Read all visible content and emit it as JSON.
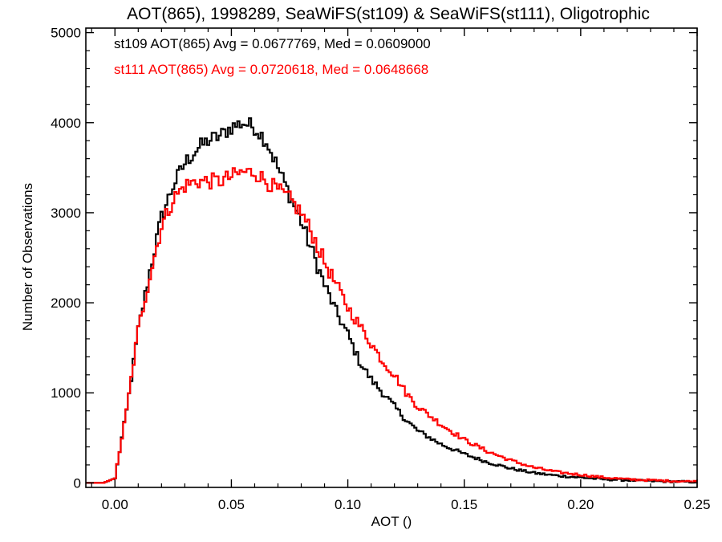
{
  "chart_data": {
    "type": "line",
    "title": "AOT(865), 1998289, SeaWiFS(st109) & SeaWiFS(st111), Oligotrophic",
    "xlabel": "AOT ()",
    "ylabel": "Number of Observations",
    "xlim": [
      -0.0125,
      0.25
    ],
    "ylim": [
      -50,
      5050
    ],
    "x_ticks": [
      0.0,
      0.05,
      0.1,
      0.15,
      0.2,
      0.25
    ],
    "x_tick_labels": [
      "0.00",
      "0.05",
      "0.10",
      "0.15",
      "0.20",
      "0.25"
    ],
    "y_ticks": [
      0,
      1000,
      2000,
      3000,
      4000,
      5000
    ],
    "y_tick_labels": [
      "0",
      "1000",
      "2000",
      "3000",
      "4000",
      "5000"
    ],
    "grid": false,
    "legend": "top-left",
    "series": [
      {
        "name": "st109",
        "color": "#000000",
        "legend_text": "st109 AOT(865) Avg = 0.0677769, Med = 0.0609000",
        "x": [
          -0.02,
          -0.005,
          0.0,
          0.005,
          0.01,
          0.015,
          0.02,
          0.025,
          0.03,
          0.035,
          0.04,
          0.045,
          0.05,
          0.055,
          0.06,
          0.065,
          0.07,
          0.075,
          0.08,
          0.085,
          0.09,
          0.095,
          0.1,
          0.105,
          0.11,
          0.115,
          0.12,
          0.125,
          0.13,
          0.14,
          0.15,
          0.16,
          0.17,
          0.18,
          0.19,
          0.2,
          0.21,
          0.22,
          0.23,
          0.24,
          0.25
        ],
        "y": [
          0,
          0,
          50,
          800,
          1700,
          2350,
          2950,
          3300,
          3550,
          3700,
          3800,
          3850,
          3950,
          4000,
          3950,
          3800,
          3500,
          3200,
          2900,
          2550,
          2200,
          1900,
          1650,
          1350,
          1150,
          1000,
          850,
          700,
          580,
          430,
          320,
          230,
          160,
          110,
          80,
          60,
          40,
          30,
          20,
          15,
          10
        ]
      },
      {
        "name": "st111",
        "color": "#ff0000",
        "legend_text": "st111 AOT(865) Avg = 0.0720618, Med = 0.0648668",
        "x": [
          -0.02,
          -0.005,
          0.0,
          0.005,
          0.01,
          0.015,
          0.02,
          0.025,
          0.03,
          0.035,
          0.04,
          0.045,
          0.05,
          0.055,
          0.06,
          0.065,
          0.07,
          0.075,
          0.08,
          0.085,
          0.09,
          0.095,
          0.1,
          0.105,
          0.11,
          0.115,
          0.12,
          0.125,
          0.13,
          0.14,
          0.15,
          0.16,
          0.17,
          0.18,
          0.19,
          0.2,
          0.21,
          0.22,
          0.23,
          0.24,
          0.25
        ],
        "y": [
          0,
          0,
          50,
          800,
          1700,
          2300,
          2850,
          3150,
          3300,
          3350,
          3350,
          3350,
          3400,
          3450,
          3450,
          3350,
          3250,
          3150,
          3000,
          2750,
          2450,
          2200,
          1950,
          1750,
          1550,
          1350,
          1200,
          1000,
          850,
          650,
          480,
          350,
          250,
          170,
          120,
          90,
          60,
          40,
          30,
          20,
          15
        ]
      }
    ]
  }
}
